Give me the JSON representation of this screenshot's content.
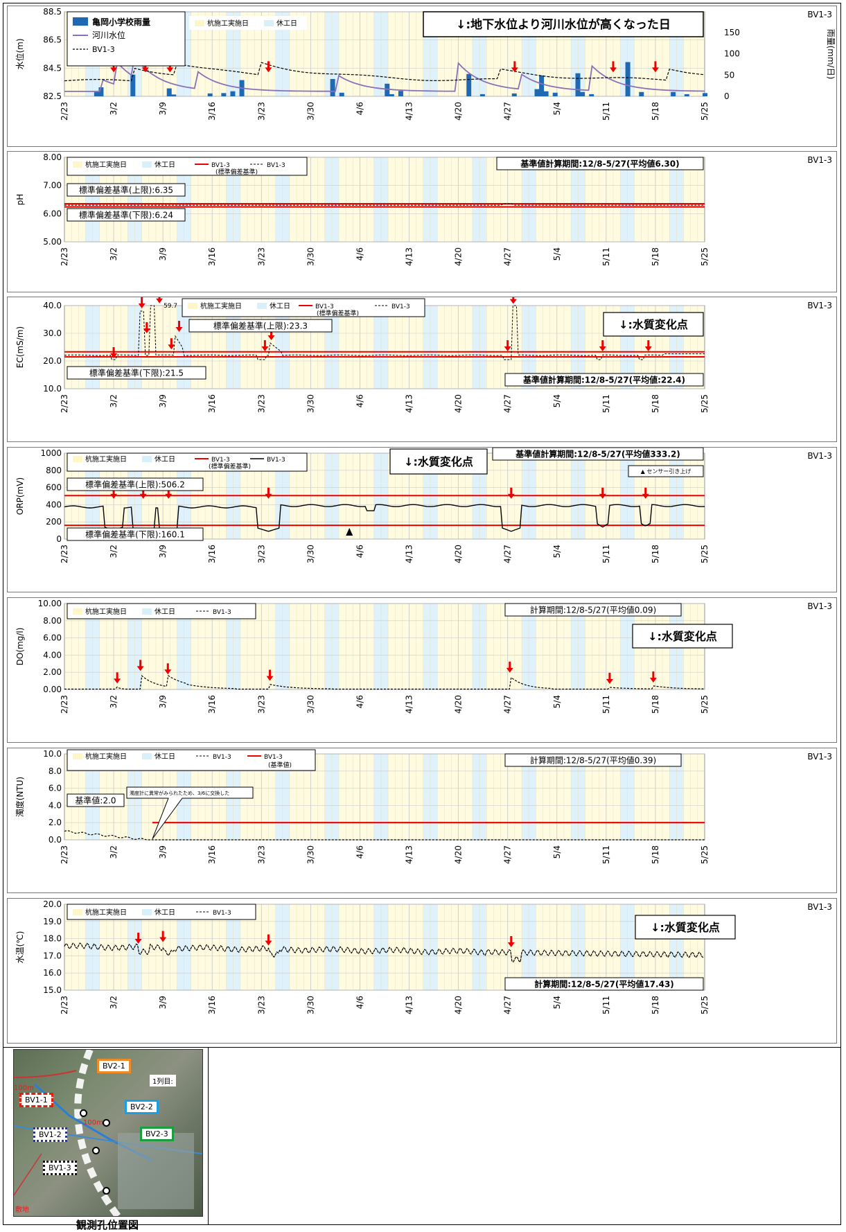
{
  "dates": [
    "2/23",
    "3/2",
    "3/9",
    "3/16",
    "3/23",
    "3/30",
    "4/6",
    "4/13",
    "4/20",
    "4/27",
    "5/4",
    "5/11",
    "5/18",
    "5/25"
  ],
  "common": {
    "work_legend": "杭施工実施日",
    "holiday_legend": "休工日",
    "station": "BV1-3",
    "series_name": "BV1-3",
    "std_series_name": "BV1-3",
    "std_series_note": "(標準偏差基準)"
  },
  "panels": {
    "level": {
      "ylabel": "水位(m)",
      "y2label": "雨量(mm/日)",
      "legend_rain": "亀岡小学校雨量",
      "legend_river": "河川水位",
      "legend_bv": "BV1-3",
      "note": "↓:地下水位より河川水位が高くなった日",
      "yticks": [
        "88.5",
        "86.5",
        "84.5",
        "82.5"
      ],
      "y2ticks": [
        "150",
        "100",
        "50",
        "0"
      ]
    },
    "ph": {
      "ylabel": "pH",
      "upper_label": "標準偏差基準(上限):6.35",
      "lower_label": "標準偏差基準(下限):6.24",
      "period": "基準値計算期間:12/8-5/27(平均値6.30)",
      "yticks": [
        "8.00",
        "7.00",
        "6.00",
        "5.00"
      ]
    },
    "ec": {
      "ylabel": "EC(mS/m)",
      "upper_label": "標準偏差基準(上限):23.3",
      "lower_label": "標準偏差基準(下限):21.5",
      "period": "基準値計算期間:12/8-5/27(平均値:22.4)",
      "peak_label": "59.7",
      "change_note": "↓:水質変化点",
      "yticks": [
        "40.0",
        "30.0",
        "20.0",
        "10.0"
      ]
    },
    "orp": {
      "ylabel": "ORP(mV)",
      "upper_label": "標準偏差基準(上限):506.2",
      "lower_label": "標準偏差基準(下限):160.1",
      "period": "基準値計算期間:12/8-5/27(平均値333.2)",
      "sensor_note": "▲ センサー引き上げ",
      "change_note": "↓:水質変化点",
      "yticks": [
        "1000",
        "800",
        "600",
        "400",
        "200",
        "0"
      ]
    },
    "do": {
      "ylabel": "DO(mg/l)",
      "period": "計算期間:12/8-5/27(平均値0.09)",
      "change_note": "↓:水質変化点",
      "yticks": [
        "10.00",
        "8.00",
        "6.00",
        "4.00",
        "2.00",
        "0.00"
      ]
    },
    "turb": {
      "ylabel": "濁度(NTU)",
      "period": "計算期間:12/8-5/27(平均値0.39)",
      "base_label": "基準値:2.0",
      "callout": "濁度計に異常がみられたため、3/6に交換した",
      "ref_series": "BV1-3",
      "ref_note": "(基準値)",
      "yticks": [
        "10.0",
        "8.0",
        "6.0",
        "4.0",
        "2.0",
        "0.0"
      ]
    },
    "temp": {
      "ylabel": "水温(℃)",
      "period": "計算期間:12/8-5/27(平均値17.43)",
      "change_note": "↓:水質変化点",
      "yticks": [
        "20.0",
        "19.0",
        "18.0",
        "17.0",
        "16.0",
        "15.0"
      ]
    }
  },
  "map": {
    "caption": "観測孔位置図",
    "labels": [
      "BV2-1",
      "BV1-1",
      "BV2-2",
      "BV1-2",
      "BV2-3",
      "BV1-3"
    ],
    "distance1": "100m",
    "distance2": "100m",
    "row_label": "1列目:",
    "area_label": "敷地"
  },
  "chart_data": [
    {
      "type": "line",
      "title": "",
      "ylabel": "水位(m)",
      "ylim": [
        82.5,
        88.5
      ],
      "y2label": "雨量(mm/日)",
      "y2lim": [
        0,
        150
      ],
      "x": [
        "2/23",
        "3/2",
        "3/9",
        "3/16",
        "3/23",
        "3/30",
        "4/6",
        "4/13",
        "4/20",
        "4/27",
        "5/4",
        "5/11",
        "5/18",
        "5/25"
      ],
      "series": [
        {
          "name": "BV1-3",
          "values": [
            83.6,
            83.9,
            84.3,
            83.9,
            84.4,
            84.0,
            83.8,
            83.7,
            83.7,
            84.4,
            84.0,
            83.8,
            84.3,
            84.1
          ]
        },
        {
          "name": "河川水位",
          "values": [
            82.8,
            82.9,
            83.6,
            83.1,
            83.6,
            83.0,
            83.1,
            82.9,
            82.9,
            83.5,
            83.2,
            83.0,
            83.4,
            82.9
          ]
        },
        {
          "name": "亀岡小学校雨量",
          "type": "bar",
          "values": [
            0,
            25,
            65,
            8,
            40,
            0,
            45,
            10,
            35,
            60,
            12,
            48,
            85,
            8
          ]
        }
      ],
      "annotations": [
        "↓:地下水位より河川水位が高くなった日"
      ]
    },
    {
      "type": "line",
      "ylabel": "pH",
      "ylim": [
        5.0,
        8.0
      ],
      "x": [
        "2/23",
        "3/2",
        "3/9",
        "3/16",
        "3/23",
        "3/30",
        "4/6",
        "4/13",
        "4/20",
        "4/27",
        "5/4",
        "5/11",
        "5/18",
        "5/25"
      ],
      "series": [
        {
          "name": "BV1-3",
          "values": [
            6.3,
            6.3,
            6.32,
            6.3,
            6.3,
            6.3,
            6.3,
            6.3,
            6.3,
            6.35,
            6.3,
            6.3,
            6.3,
            6.3
          ]
        }
      ],
      "reference_lines": {
        "upper": 6.35,
        "lower": 6.24
      }
    },
    {
      "type": "line",
      "ylabel": "EC(mS/m)",
      "ylim": [
        10.0,
        40.0
      ],
      "x": [
        "2/23",
        "3/2",
        "3/9",
        "3/16",
        "3/23",
        "3/30",
        "4/6",
        "4/13",
        "4/20",
        "4/27",
        "5/4",
        "5/11",
        "5/18",
        "5/25"
      ],
      "series": [
        {
          "name": "BV1-3",
          "values": [
            22.0,
            21.8,
            23.2,
            22.2,
            23.0,
            22.2,
            22.0,
            22.0,
            22.0,
            22.3,
            22.0,
            22.0,
            22.2,
            22.6
          ]
        }
      ],
      "peak": 59.7,
      "reference_lines": {
        "upper": 23.3,
        "lower": 21.5
      }
    },
    {
      "type": "line",
      "ylabel": "ORP(mV)",
      "ylim": [
        0,
        1000
      ],
      "x": [
        "2/23",
        "3/2",
        "3/9",
        "3/16",
        "3/23",
        "3/30",
        "4/6",
        "4/13",
        "4/20",
        "4/27",
        "5/4",
        "5/11",
        "5/18",
        "5/25"
      ],
      "series": [
        {
          "name": "BV1-3",
          "values": [
            370,
            380,
            375,
            380,
            390,
            395,
            375,
            385,
            390,
            385,
            390,
            395,
            395,
            395
          ]
        }
      ],
      "minima": [
        110,
        95,
        95,
        90,
        95,
        140,
        150
      ],
      "reference_lines": {
        "upper": 506.2,
        "lower": 160.1
      }
    },
    {
      "type": "line",
      "ylabel": "DO(mg/l)",
      "ylim": [
        0,
        10
      ],
      "x": [
        "2/23",
        "3/2",
        "3/9",
        "3/16",
        "3/23",
        "3/30",
        "4/6",
        "4/13",
        "4/20",
        "4/27",
        "5/4",
        "5/11",
        "5/18",
        "5/25"
      ],
      "series": [
        {
          "name": "BV1-3",
          "values": [
            0.0,
            0.1,
            1.3,
            0.05,
            0.4,
            0.0,
            0.0,
            0.0,
            0.0,
            0.9,
            0.05,
            0.2,
            0.1,
            0.0
          ]
        }
      ],
      "peaks": [
        1.6,
        1.4,
        0.5,
        1.4,
        0.2,
        0.3
      ]
    },
    {
      "type": "line",
      "ylabel": "濁度(NTU)",
      "ylim": [
        0,
        10
      ],
      "x": [
        "2/23",
        "3/2",
        "3/9",
        "3/16",
        "3/23",
        "3/30",
        "4/6",
        "4/13",
        "4/20",
        "4/27",
        "5/4",
        "5/11",
        "5/18",
        "5/25"
      ],
      "series": [
        {
          "name": "BV1-3",
          "values": [
            1.0,
            0.5,
            0.0,
            0.0,
            0.0,
            0.0,
            0.0,
            0.0,
            0.0,
            0.0,
            0.0,
            0.0,
            0.0,
            0.0
          ]
        },
        {
          "name": "BV1-3",
          "values": [
            2.0,
            2.0,
            2.0,
            2.0,
            2.0,
            2.0,
            2.0,
            2.0,
            2.0,
            2.0,
            2.0,
            2.0,
            2.0,
            2.0
          ]
        }
      ]
    },
    {
      "type": "line",
      "ylabel": "水温(℃)",
      "ylim": [
        15.0,
        20.0
      ],
      "x": [
        "2/23",
        "3/2",
        "3/9",
        "3/16",
        "3/23",
        "3/30",
        "4/6",
        "4/13",
        "4/20",
        "4/27",
        "5/4",
        "5/11",
        "5/18",
        "5/25"
      ],
      "series": [
        {
          "name": "BV1-3",
          "values": [
            17.6,
            17.5,
            17.4,
            17.3,
            17.2,
            17.2,
            17.3,
            17.2,
            17.2,
            17.1,
            17.1,
            17.1,
            17.0,
            17.0
          ]
        }
      ]
    }
  ]
}
